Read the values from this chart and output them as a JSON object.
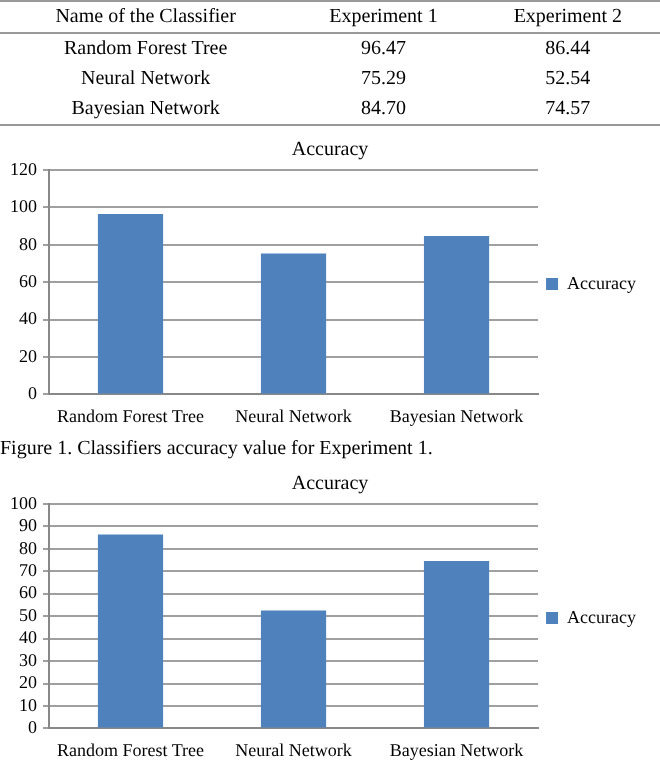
{
  "chart_data": [
    {
      "type": "other",
      "annotations": [
        "Name of the Classifier"
      ],
      "categories": [
        "Random Forest Tree",
        "Neural Network",
        "Bayesian Network"
      ],
      "series": [
        {
          "name": "Experiment 1",
          "values": [
            96.47,
            75.29,
            84.7
          ],
          "value_labels": [
            "96.47",
            "75.29",
            "84.70"
          ]
        },
        {
          "name": "Experiment 2",
          "values": [
            86.44,
            52.54,
            74.57
          ],
          "value_labels": [
            "86.44",
            "52.54",
            "74.57"
          ]
        }
      ]
    },
    {
      "type": "bar",
      "title": "Accuracy",
      "categories": [
        "Random Forest Tree",
        "Neural Network",
        "Bayesian Network"
      ],
      "series": [
        {
          "name": "Accuracy",
          "color": "#4f81bd",
          "values": [
            96.47,
            75.29,
            84.7
          ]
        }
      ],
      "ylim": [
        0,
        120
      ],
      "yticks": [
        0,
        20,
        40,
        60,
        80,
        100,
        120
      ],
      "grid": "y",
      "legend": "right",
      "annotations": [
        "Figure 1. Classifiers accuracy value for Experiment 1."
      ]
    },
    {
      "type": "bar",
      "title": "Accuracy",
      "categories": [
        "Random Forest Tree",
        "Neural Network",
        "Bayesian Network"
      ],
      "series": [
        {
          "name": "Accuracy",
          "color": "#4f81bd",
          "values": [
            86.44,
            52.54,
            74.57
          ]
        }
      ],
      "ylim": [
        0,
        100
      ],
      "yticks": [
        0,
        10,
        20,
        30,
        40,
        50,
        60,
        70,
        80,
        90,
        100
      ],
      "grid": "y",
      "legend": "right"
    }
  ]
}
